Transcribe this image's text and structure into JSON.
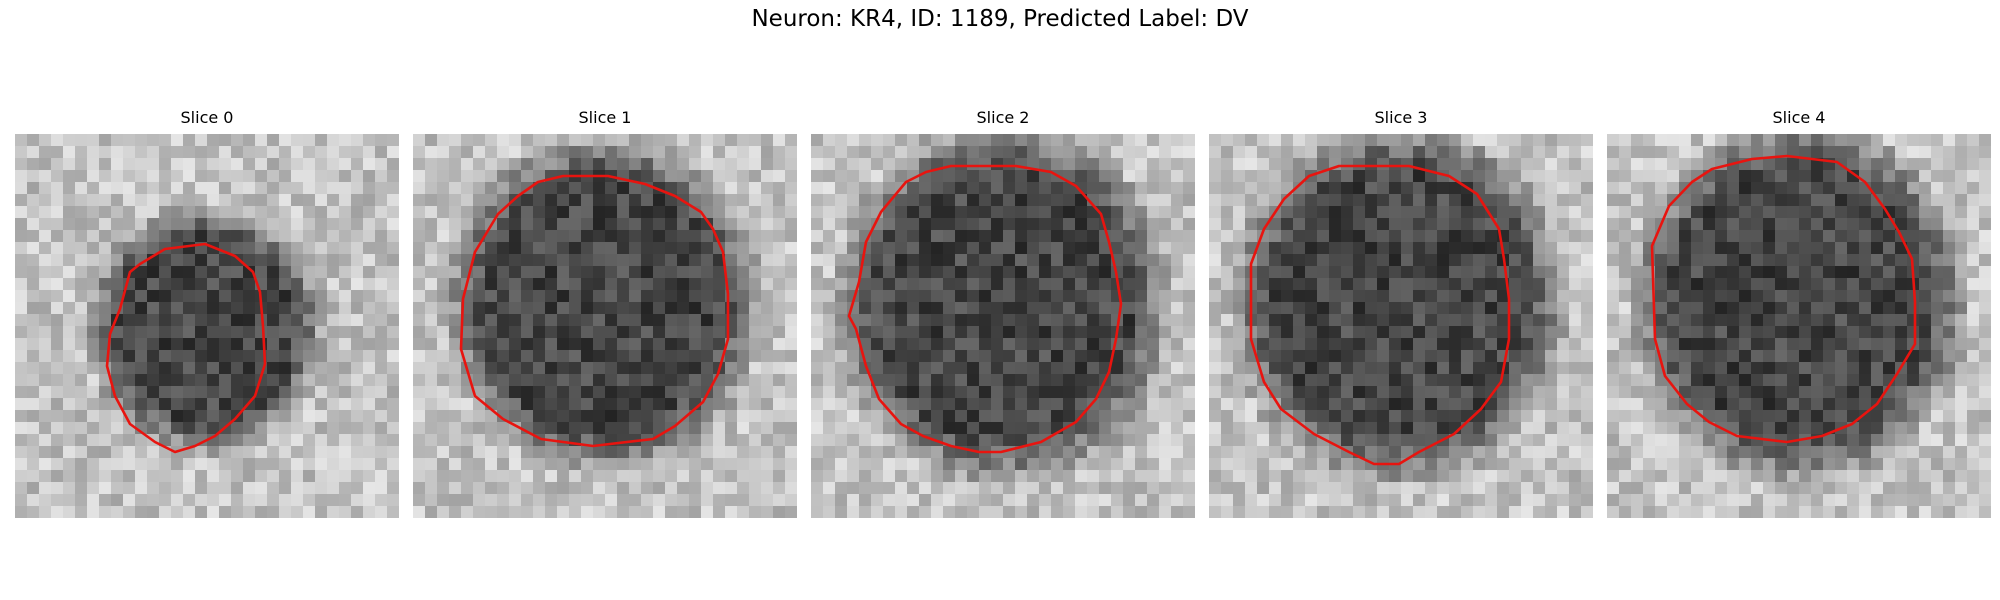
{
  "figure": {
    "title": "Neuron: KR4, ID: 1189, Predicted Label: DV"
  },
  "panels": [
    {
      "title": "Slice 0"
    },
    {
      "title": "Slice 1"
    },
    {
      "title": "Slice 2"
    },
    {
      "title": "Slice 3"
    },
    {
      "title": "Slice 4"
    }
  ],
  "colors": {
    "contour": "#e8140f",
    "background": "#ffffff"
  }
}
